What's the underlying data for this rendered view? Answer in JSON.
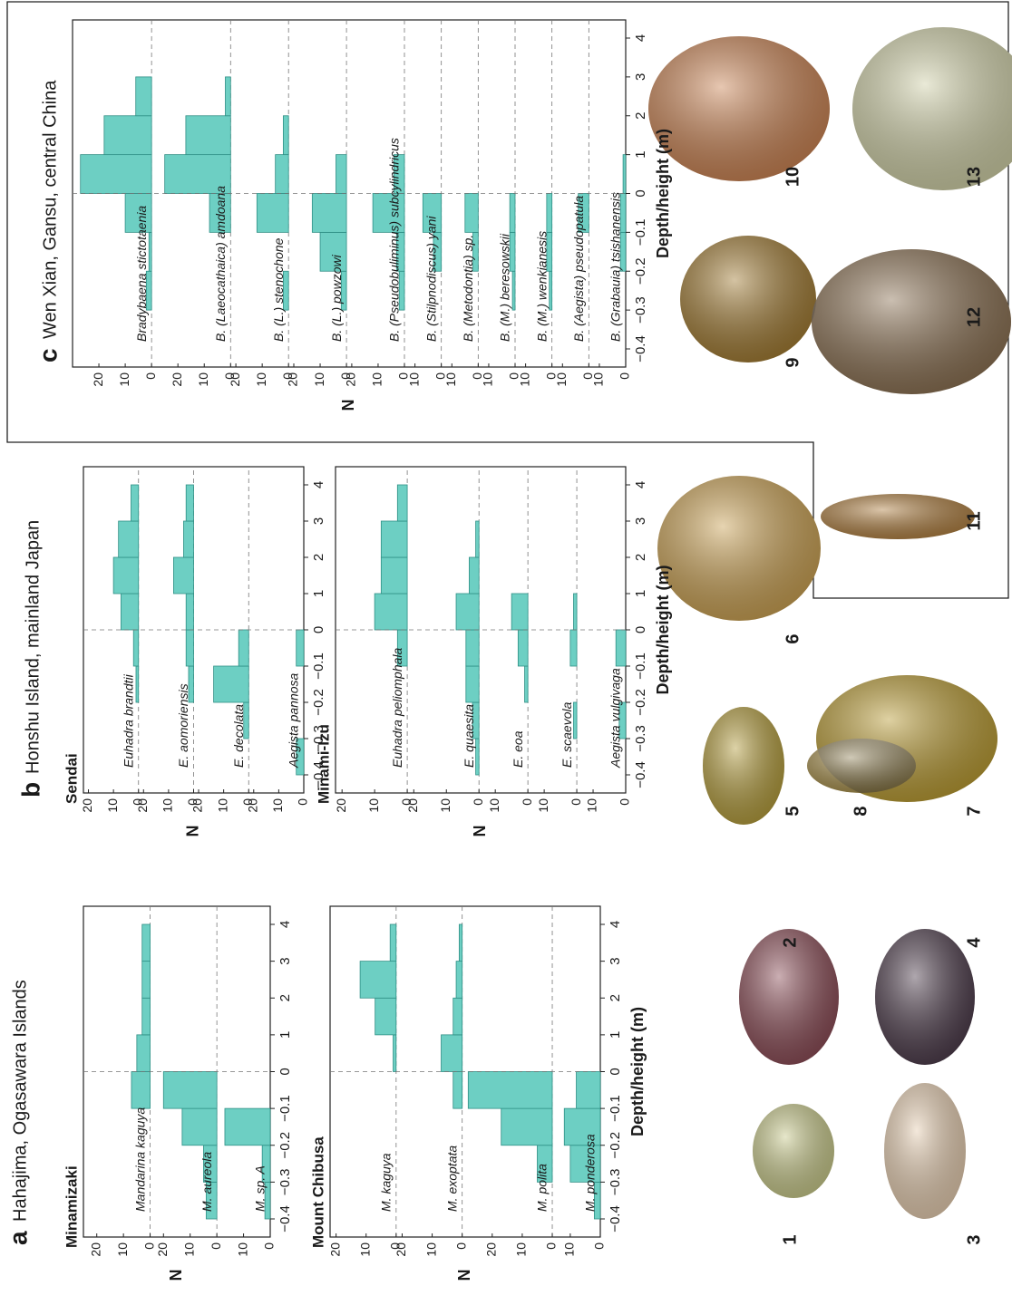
{
  "panels": [
    {
      "letter": "a",
      "title": "Hahajima, Ogasawara Islands"
    },
    {
      "letter": "b",
      "title": "Honshu Island, mainland Japan"
    },
    {
      "letter": "c",
      "title": "Wen Xian, Gansu, central China"
    }
  ],
  "photos": {
    "labels": [
      "1",
      "2",
      "3",
      "4",
      "5",
      "6",
      "7",
      "8",
      "9",
      "10",
      "11",
      "12",
      "13"
    ]
  },
  "chart_data": [
    {
      "type": "histogram",
      "title": "Minamizaki",
      "ylabel": "N",
      "color": "#6dcfc3",
      "bins": [
        -0.4,
        -0.3,
        -0.2,
        -0.1,
        0,
        1,
        2,
        3,
        4
      ],
      "xticks": [
        {
          "value": -0.4,
          "label": "−0.4"
        },
        {
          "value": -0.3,
          "label": "−0.3"
        },
        {
          "value": -0.2,
          "label": "−0.2"
        },
        {
          "value": -0.1,
          "label": "−0.1"
        },
        0,
        1,
        2,
        3,
        4
      ],
      "series": [
        {
          "name": "Mandarina kaguya",
          "values": [
            0,
            0,
            0,
            7,
            5,
            3,
            3,
            3
          ],
          "ylim": [
            0,
            25
          ],
          "yticks": [
            0,
            10,
            20
          ]
        },
        {
          "name": "M. aureola",
          "values": [
            4,
            5,
            13,
            20,
            0,
            0,
            0,
            0
          ],
          "ylim": [
            0,
            25
          ],
          "yticks": [
            0,
            10,
            20
          ]
        },
        {
          "name": "M. sp. A",
          "values": [
            2,
            3,
            17,
            0,
            0,
            0,
            0,
            0
          ],
          "ylim": [
            0,
            20
          ],
          "yticks": [
            0,
            10
          ]
        }
      ]
    },
    {
      "type": "histogram",
      "title": "Mount Chibusa",
      "ylabel": "N",
      "xlabel": "Depth/height (m)",
      "color": "#6dcfc3",
      "bins": [
        -0.4,
        -0.3,
        -0.2,
        -0.1,
        0,
        1,
        2,
        3,
        4
      ],
      "xticks": [
        {
          "value": -0.4,
          "label": "−0.4"
        },
        {
          "value": -0.3,
          "label": "−0.3"
        },
        {
          "value": -0.2,
          "label": "−0.2"
        },
        {
          "value": -0.1,
          "label": "−0.1"
        },
        0,
        1,
        2,
        3,
        4
      ],
      "series": [
        {
          "name": "M. kaguya",
          "values": [
            0,
            0,
            0,
            0,
            1,
            7,
            12,
            2
          ],
          "ylim": [
            0,
            22
          ],
          "yticks": [
            0,
            10,
            20
          ]
        },
        {
          "name": "M. exoptata",
          "values": [
            0,
            0,
            0,
            3,
            7,
            3,
            2,
            1
          ],
          "ylim": [
            0,
            22
          ],
          "yticks": [
            0,
            10,
            20
          ]
        },
        {
          "name": "M. polita",
          "values": [
            0,
            5,
            17,
            28,
            0,
            0,
            0,
            0
          ],
          "ylim": [
            0,
            30
          ],
          "yticks": [
            0,
            10,
            20
          ]
        },
        {
          "name": "M. ponderosa",
          "values": [
            2,
            10,
            12,
            8,
            0,
            0,
            0,
            0
          ],
          "ylim": [
            0,
            16
          ],
          "yticks": [
            0,
            10
          ]
        }
      ]
    },
    {
      "type": "histogram",
      "title": "Sendai",
      "ylabel": "N",
      "color": "#6dcfc3",
      "bins": [
        -0.4,
        -0.3,
        -0.2,
        -0.1,
        0,
        1,
        2,
        3,
        4
      ],
      "xticks": [
        {
          "value": -0.4,
          "label": "−0.4"
        },
        {
          "value": -0.3,
          "label": "−0.3"
        },
        {
          "value": -0.2,
          "label": "−0.2"
        },
        {
          "value": -0.1,
          "label": "−0.1"
        },
        0,
        1,
        2,
        3,
        4
      ],
      "series": [
        {
          "name": "Euhadra brandtii",
          "values": [
            0,
            0,
            1,
            2,
            7,
            10,
            8,
            3
          ],
          "ylim": [
            0,
            22
          ],
          "yticks": [
            0,
            10,
            20
          ]
        },
        {
          "name": "E. aomoriensis",
          "values": [
            0,
            0,
            2,
            3,
            3,
            8,
            4,
            3
          ],
          "ylim": [
            0,
            22
          ],
          "yticks": [
            0,
            10,
            20
          ]
        },
        {
          "name": "E. decolata",
          "values": [
            0,
            2,
            14,
            4,
            0,
            0,
            0,
            0
          ],
          "ylim": [
            0,
            22
          ],
          "yticks": [
            0,
            10,
            20
          ]
        },
        {
          "name": "Aegista pannosa",
          "values": [
            3,
            0,
            0,
            3,
            0,
            0,
            0,
            0
          ],
          "ylim": [
            0,
            22
          ],
          "yticks": [
            0,
            10,
            20
          ]
        }
      ]
    },
    {
      "type": "histogram",
      "title": "Minami-Izu",
      "ylabel": "N",
      "xlabel": "Depth/height (m)",
      "color": "#6dcfc3",
      "bins": [
        -0.4,
        -0.3,
        -0.2,
        -0.1,
        0,
        1,
        2,
        3,
        4
      ],
      "xticks": [
        {
          "value": -0.4,
          "label": "−0.4"
        },
        {
          "value": -0.3,
          "label": "−0.3"
        },
        {
          "value": -0.2,
          "label": "−0.2"
        },
        {
          "value": -0.1,
          "label": "−0.1"
        },
        0,
        1,
        2,
        3,
        4
      ],
      "series": [
        {
          "name": "Euhadra peliomphala",
          "values": [
            0,
            0,
            0,
            3,
            10,
            8,
            8,
            3
          ],
          "ylim": [
            0,
            22
          ],
          "yticks": [
            0,
            10,
            20
          ]
        },
        {
          "name": "E. quaesita",
          "values": [
            1,
            2,
            4,
            4,
            7,
            3,
            1,
            0
          ],
          "ylim": [
            0,
            22
          ],
          "yticks": [
            0,
            10,
            20
          ]
        },
        {
          "name": "E. eoa",
          "values": [
            0,
            0,
            1,
            3,
            5,
            0,
            0,
            0
          ],
          "ylim": [
            0,
            15
          ],
          "yticks": [
            0,
            10
          ]
        },
        {
          "name": "E. scaevola",
          "values": [
            0,
            1,
            0,
            2,
            1,
            0,
            0,
            0
          ],
          "ylim": [
            0,
            15
          ],
          "yticks": [
            0,
            10
          ]
        },
        {
          "name": "Aegista vulgivaga",
          "values": [
            0,
            2,
            0,
            3,
            0,
            0,
            0,
            0
          ],
          "ylim": [
            0,
            15
          ],
          "yticks": [
            0,
            10
          ]
        }
      ]
    },
    {
      "type": "histogram",
      "ylabel": "N",
      "xlabel": "Depth/height (m)",
      "color": "#6dcfc3",
      "bins": [
        -0.4,
        -0.3,
        -0.2,
        -0.1,
        0,
        1,
        2,
        3,
        4
      ],
      "xticks": [
        {
          "value": -0.4,
          "label": "−0.4"
        },
        {
          "value": -0.3,
          "label": "−0.3"
        },
        {
          "value": -0.2,
          "label": "−0.2"
        },
        {
          "value": -0.1,
          "label": "−0.1"
        },
        0,
        1,
        2,
        3,
        4
      ],
      "series": [
        {
          "name": "Bradybaena stictotaenia",
          "values": [
            0,
            2,
            1,
            10,
            27,
            18,
            6,
            0
          ],
          "ylim": [
            0,
            30
          ],
          "yticks": [
            0,
            10,
            20
          ]
        },
        {
          "name": "B. (Laeocathaica) amdoana",
          "values": [
            0,
            0,
            0,
            8,
            25,
            17,
            2,
            0
          ],
          "ylim": [
            0,
            30
          ],
          "yticks": [
            0,
            10,
            20
          ]
        },
        {
          "name": "B. (L.) stenochone",
          "values": [
            0,
            2,
            0,
            12,
            5,
            2,
            0,
            0
          ],
          "ylim": [
            0,
            22
          ],
          "yticks": [
            0,
            10,
            20
          ]
        },
        {
          "name": "B. (L.) powzowi",
          "values": [
            0,
            2,
            10,
            13,
            4,
            0,
            0,
            0
          ],
          "ylim": [
            0,
            22
          ],
          "yticks": [
            0,
            10,
            20
          ]
        },
        {
          "name": "B. (Pseudobuliminus) subcylindricus",
          "values": [
            0,
            2,
            3,
            12,
            4,
            0,
            0,
            0
          ],
          "ylim": [
            0,
            22
          ],
          "yticks": [
            0,
            10,
            20
          ]
        },
        {
          "name": "B. (Stilpnodiscus) yani",
          "values": [
            0,
            0,
            3,
            7,
            0,
            0,
            0,
            0
          ],
          "ylim": [
            0,
            14
          ],
          "yticks": [
            0,
            10
          ]
        },
        {
          "name": "B. (Metodontia) sp.",
          "values": [
            0,
            0,
            2,
            5,
            0,
            0,
            0,
            0
          ],
          "ylim": [
            0,
            14
          ],
          "yticks": [
            0,
            10
          ]
        },
        {
          "name": "B. (M.) beresowskii",
          "values": [
            0,
            1,
            2,
            2,
            0,
            0,
            0,
            0
          ],
          "ylim": [
            0,
            14
          ],
          "yticks": [
            0,
            10
          ]
        },
        {
          "name": "B. (M.) wenkianesis",
          "values": [
            0,
            1,
            2,
            2,
            0,
            0,
            0,
            0
          ],
          "ylim": [
            0,
            14
          ],
          "yticks": [
            0,
            10
          ]
        },
        {
          "name": "B. (Aegista) pseudopatula",
          "values": [
            0,
            0,
            0,
            4,
            0,
            0,
            0,
            0
          ],
          "ylim": [
            0,
            14
          ],
          "yticks": [
            0,
            10
          ]
        },
        {
          "name": "B. (Grabauia) tsishanensis",
          "values": [
            0,
            0,
            2,
            2,
            1,
            0,
            0,
            0
          ],
          "ylim": [
            0,
            14
          ],
          "yticks": [
            0,
            10
          ]
        }
      ]
    }
  ]
}
